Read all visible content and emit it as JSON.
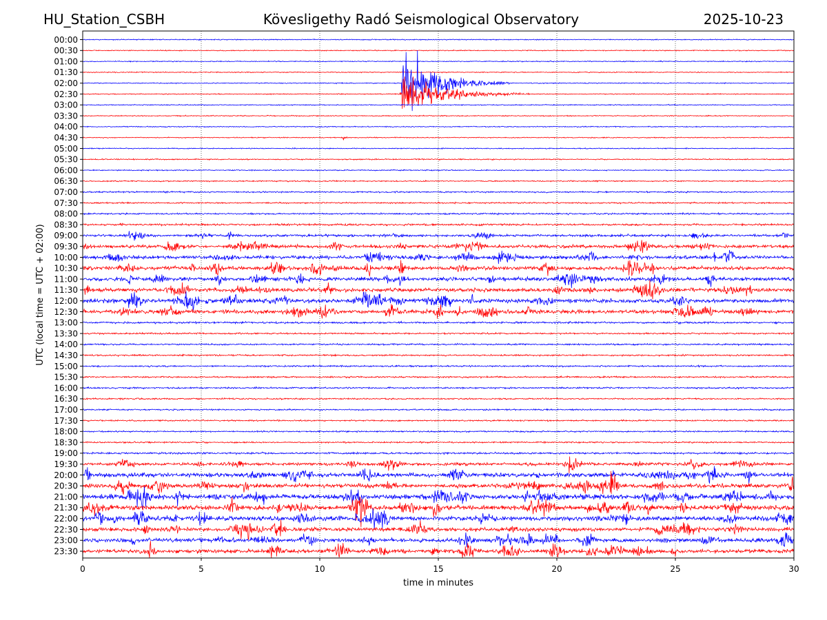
{
  "header": {
    "station": "HU_Station_CSBH",
    "observatory": "Kövesligethy Radó Seismological Observatory",
    "date": "2025-10-23"
  },
  "chart_data": {
    "type": "line",
    "title": "Kövesligethy Radó Seismological Observatory",
    "xlabel": "time in minutes",
    "ylabel": "UTC (local time = UTC + 02:00)",
    "xlim": [
      0,
      30
    ],
    "x_ticks": [
      "0",
      "5",
      "10",
      "15",
      "20",
      "25",
      "30"
    ],
    "x_tick_values": [
      0,
      5,
      10,
      15,
      20,
      25,
      30
    ],
    "grid_vertical": true,
    "row_labels": [
      "00:00",
      "00:30",
      "01:00",
      "01:30",
      "02:00",
      "02:30",
      "03:00",
      "03:30",
      "04:00",
      "04:30",
      "05:00",
      "05:30",
      "06:00",
      "06:30",
      "07:00",
      "07:30",
      "08:00",
      "08:30",
      "09:00",
      "09:30",
      "10:00",
      "10:30",
      "11:00",
      "11:30",
      "12:00",
      "12:30",
      "13:00",
      "13:30",
      "14:00",
      "14:30",
      "15:00",
      "15:30",
      "16:00",
      "16:30",
      "17:00",
      "17:30",
      "18:00",
      "18:30",
      "19:00",
      "19:30",
      "20:00",
      "20:30",
      "21:00",
      "21:30",
      "22:00",
      "22:30",
      "23:00",
      "23:30"
    ],
    "row_colors": [
      "#0000ff",
      "#ff0000"
    ],
    "noise_levels": [
      0.6,
      0.6,
      0.6,
      0.6,
      0.6,
      0.6,
      0.6,
      0.6,
      0.6,
      0.6,
      0.6,
      0.7,
      0.7,
      0.8,
      0.9,
      0.9,
      1.0,
      1.2,
      1.5,
      2.0,
      2.2,
      2.4,
      2.4,
      2.4,
      2.5,
      2.4,
      1.2,
      1.0,
      1.0,
      1.0,
      1.0,
      1.0,
      1.0,
      0.9,
      0.9,
      0.9,
      0.9,
      0.9,
      1.2,
      1.8,
      2.6,
      2.6,
      3.0,
      3.0,
      2.8,
      2.4,
      2.4,
      2.4
    ],
    "events": [
      {
        "row": 4,
        "minute": 13.5,
        "amplitude": 45,
        "duration": 4.5
      },
      {
        "row": 5,
        "minute": 13.45,
        "amplitude": 25,
        "duration": 5.5
      },
      {
        "row": 9,
        "minute": 11.0,
        "amplitude": 6,
        "duration": 0.2
      },
      {
        "row": 19,
        "minute": 16.6,
        "amplitude": 6,
        "duration": 0.8
      },
      {
        "row": 21,
        "minute": 10.5,
        "amplitude": 6,
        "duration": 0.5
      },
      {
        "row": 24,
        "minute": 5.2,
        "amplitude": 6,
        "duration": 0.3
      },
      {
        "row": 25,
        "minute": 24.9,
        "amplitude": 6,
        "duration": 1.0
      },
      {
        "row": 39,
        "minute": 20.5,
        "amplitude": 8,
        "duration": 0.8
      },
      {
        "row": 41,
        "minute": 6.8,
        "amplitude": 9,
        "duration": 0.4
      },
      {
        "row": 43,
        "minute": 8.2,
        "amplitude": 9,
        "duration": 0.6
      },
      {
        "row": 43,
        "minute": 14.8,
        "amplitude": 9,
        "duration": 0.4
      },
      {
        "row": 44,
        "minute": 21.7,
        "amplitude": 9,
        "duration": 0.2
      },
      {
        "row": 46,
        "minute": 28.4,
        "amplitude": 8,
        "duration": 0.3
      },
      {
        "row": 47,
        "minute": 21.3,
        "amplitude": 9,
        "duration": 0.3
      },
      {
        "row": 47,
        "minute": 2.8,
        "amplitude": 8,
        "duration": 0.6
      }
    ]
  }
}
